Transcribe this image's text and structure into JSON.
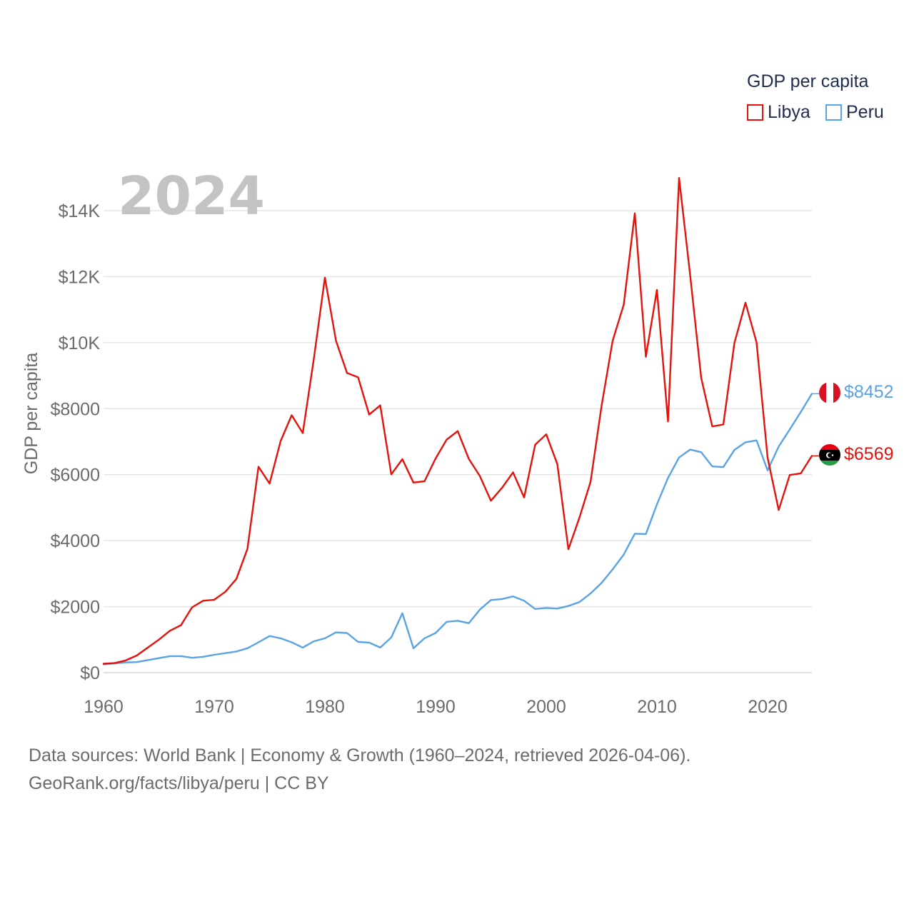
{
  "legend": {
    "title": "GDP per capita",
    "items": [
      {
        "label": "Libya",
        "color": "#e3120b"
      },
      {
        "label": "Peru",
        "color": "#5aa3e3"
      }
    ]
  },
  "footer": {
    "line1": "Data sources: World Bank | Economy & Growth (1960–2024, retrieved 2026-04-06).",
    "line2": "GeoRank.org/facts/libya/peru | CC BY"
  },
  "chart_data": {
    "type": "line",
    "year_label": "2024",
    "ylabel": "GDP per capita",
    "xlim": [
      1960,
      2024
    ],
    "ylim": [
      0,
      14000
    ],
    "x_ticks": [
      1960,
      1970,
      1980,
      1990,
      2000,
      2010,
      2020
    ],
    "y_ticks": [
      {
        "value": 0,
        "label": "$0"
      },
      {
        "value": 2000,
        "label": "$2000"
      },
      {
        "value": 4000,
        "label": "$4000"
      },
      {
        "value": 6000,
        "label": "$6000"
      },
      {
        "value": 8000,
        "label": "$8000"
      },
      {
        "value": 10000,
        "label": "$10K"
      },
      {
        "value": 12000,
        "label": "$12K"
      },
      {
        "value": 14000,
        "label": "$14K"
      }
    ],
    "grid": true,
    "x": [
      1960,
      1961,
      1962,
      1963,
      1964,
      1965,
      1966,
      1967,
      1968,
      1969,
      1970,
      1971,
      1972,
      1973,
      1974,
      1975,
      1976,
      1977,
      1978,
      1979,
      1980,
      1981,
      1982,
      1983,
      1984,
      1985,
      1986,
      1987,
      1988,
      1989,
      1990,
      1991,
      1992,
      1993,
      1994,
      1995,
      1996,
      1997,
      1998,
      1999,
      2000,
      2001,
      2002,
      2003,
      2004,
      2005,
      2006,
      2007,
      2008,
      2009,
      2010,
      2011,
      2012,
      2013,
      2014,
      2015,
      2016,
      2017,
      2018,
      2019,
      2020,
      2021,
      2022,
      2023,
      2024
    ],
    "series": [
      {
        "name": "Libya",
        "color": "#e3120b",
        "end_label": "$6569",
        "values": [
          270,
          290,
          370,
          520,
          760,
          1000,
          1270,
          1440,
          1980,
          2180,
          2210,
          2450,
          2840,
          3750,
          6240,
          5730,
          7020,
          7800,
          7260,
          9510,
          11970,
          10060,
          9080,
          8950,
          7820,
          8100,
          6010,
          6470,
          5760,
          5800,
          6490,
          7060,
          7320,
          6480,
          5960,
          5210,
          5600,
          6070,
          5310,
          6910,
          7220,
          6320,
          3740,
          4700,
          5780,
          8090,
          10060,
          11150,
          13920,
          9570,
          11600,
          7610,
          14990,
          12050,
          8930,
          7460,
          7520,
          9990,
          11210,
          10010,
          6510,
          4930,
          5990,
          6040,
          6569
        ]
      },
      {
        "name": "Peru",
        "color": "#5aa3e3",
        "end_label": "$8452",
        "values": [
          250,
          280,
          310,
          320,
          380,
          440,
          500,
          500,
          450,
          480,
          540,
          590,
          640,
          740,
          920,
          1110,
          1040,
          920,
          760,
          950,
          1040,
          1220,
          1200,
          930,
          910,
          760,
          1070,
          1800,
          740,
          1040,
          1200,
          1540,
          1570,
          1500,
          1910,
          2200,
          2230,
          2310,
          2180,
          1930,
          1960,
          1940,
          2020,
          2140,
          2400,
          2720,
          3130,
          3580,
          4210,
          4200,
          5100,
          5900,
          6520,
          6760,
          6680,
          6250,
          6230,
          6750,
          6980,
          7040,
          6130,
          6850,
          7370,
          7900,
          8452
        ]
      }
    ]
  }
}
